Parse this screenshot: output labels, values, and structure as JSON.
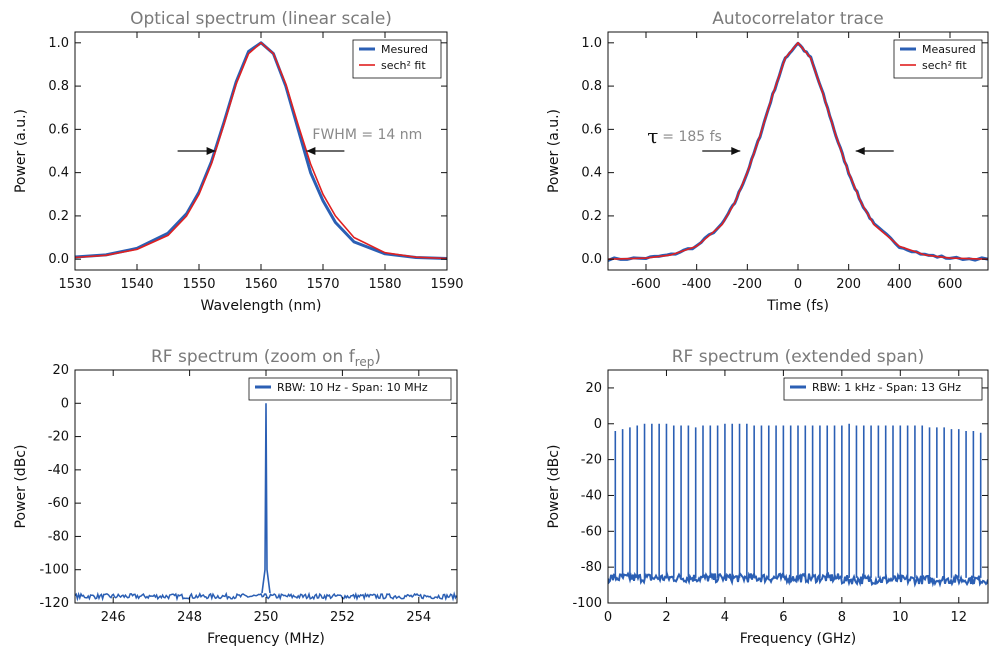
{
  "chart_data": [
    {
      "type": "line",
      "title": "Optical spectrum (linear scale)",
      "xlabel": "Wavelength (nm)",
      "ylabel": "Power (a.u.)",
      "xlim": [
        1530,
        1590
      ],
      "ylim": [
        -0.05,
        1.05
      ],
      "xticks": [
        1530,
        1540,
        1550,
        1560,
        1570,
        1580,
        1590
      ],
      "yticks": [
        0.0,
        0.2,
        0.4,
        0.6,
        0.8,
        1.0
      ],
      "ytick_labels": [
        "0.0",
        "0.2",
        "0.4",
        "0.6",
        "0.8",
        "1.0"
      ],
      "legend_position": "top-right",
      "series": [
        {
          "name": "Mesured",
          "color": "#2b5fb4",
          "x": [
            1530,
            1535,
            1540,
            1545,
            1548,
            1550,
            1552,
            1554,
            1556,
            1558,
            1560,
            1562,
            1564,
            1566,
            1568,
            1570,
            1572,
            1575,
            1580,
            1585,
            1590
          ],
          "y": [
            0.01,
            0.02,
            0.05,
            0.12,
            0.21,
            0.31,
            0.45,
            0.63,
            0.82,
            0.96,
            1.0,
            0.95,
            0.8,
            0.6,
            0.4,
            0.27,
            0.17,
            0.08,
            0.025,
            0.008,
            0.003
          ]
        },
        {
          "name": "sech² fit",
          "color": "#e02020",
          "x": [
            1530,
            1535,
            1540,
            1545,
            1548,
            1550,
            1552,
            1554,
            1556,
            1558,
            1560,
            1562,
            1564,
            1566,
            1568,
            1570,
            1572,
            1575,
            1580,
            1585,
            1590
          ],
          "y": [
            0.008,
            0.018,
            0.045,
            0.11,
            0.2,
            0.3,
            0.44,
            0.62,
            0.81,
            0.95,
            1.0,
            0.95,
            0.81,
            0.62,
            0.44,
            0.3,
            0.2,
            0.1,
            0.03,
            0.009,
            0.003
          ]
        }
      ],
      "annotation": {
        "text": "FWHM = 14 nm",
        "arrow_left_x": 1553,
        "arrow_right_x": 1567,
        "level": 0.5
      }
    },
    {
      "type": "line",
      "title": "Autocorrelator trace",
      "xlabel": "Time (fs)",
      "ylabel": "Power (a.u.)",
      "xlim": [
        -750,
        750
      ],
      "ylim": [
        -0.05,
        1.05
      ],
      "xticks": [
        -600,
        -400,
        -200,
        0,
        200,
        400,
        600
      ],
      "yticks": [
        0.0,
        0.2,
        0.4,
        0.6,
        0.8,
        1.0
      ],
      "ytick_labels": [
        "0.0",
        "0.2",
        "0.4",
        "0.6",
        "0.8",
        "1.0"
      ],
      "legend_position": "top-right",
      "series": [
        {
          "name": "Measured",
          "color": "#2b5fb4",
          "x": [
            -750,
            -600,
            -500,
            -400,
            -300,
            -250,
            -200,
            -150,
            -100,
            -50,
            0,
            50,
            100,
            150,
            200,
            250,
            300,
            400,
            500,
            600,
            750
          ],
          "y": [
            0.0,
            0.005,
            0.02,
            0.06,
            0.16,
            0.26,
            0.4,
            0.57,
            0.76,
            0.93,
            1.0,
            0.93,
            0.76,
            0.57,
            0.4,
            0.26,
            0.16,
            0.06,
            0.02,
            0.005,
            0.0
          ]
        },
        {
          "name": "sech² fit",
          "color": "#e02020",
          "x": [
            -750,
            -600,
            -500,
            -400,
            -300,
            -250,
            -200,
            -150,
            -100,
            -50,
            0,
            50,
            100,
            150,
            200,
            250,
            300,
            400,
            500,
            600,
            750
          ],
          "y": [
            0.0,
            0.005,
            0.02,
            0.06,
            0.16,
            0.26,
            0.4,
            0.57,
            0.76,
            0.93,
            1.0,
            0.93,
            0.76,
            0.57,
            0.4,
            0.26,
            0.16,
            0.06,
            0.02,
            0.005,
            0.0
          ]
        }
      ],
      "annotation": {
        "symbol": "τ",
        "text": "= 185 fs",
        "arrow_left_x": -220,
        "arrow_right_x": 220,
        "level": 0.5
      }
    },
    {
      "type": "line",
      "title": "RF spectrum (zoom on f",
      "title_subscript": "rep",
      "title_suffix": ")",
      "xlabel": "Frequency (MHz)",
      "ylabel": "Power (dBc)",
      "xlim": [
        245,
        255
      ],
      "ylim": [
        -120,
        20
      ],
      "xticks": [
        246,
        248,
        250,
        252,
        254
      ],
      "yticks": [
        20,
        0,
        -20,
        -40,
        -60,
        -80,
        -100,
        -120
      ],
      "legend_position": "top-right",
      "series": [
        {
          "name": "RBW: 10 Hz - Span: 10 MHz",
          "color": "#2b5fb4",
          "noise_floor": -116,
          "peaks": [
            {
              "x": 250.0,
              "y": 0
            }
          ]
        }
      ]
    },
    {
      "type": "line",
      "title": "RF spectrum (extended span)",
      "xlabel": "Frequency (GHz)",
      "ylabel": "Power (dBc)",
      "xlim": [
        0,
        13
      ],
      "ylim": [
        -100,
        30
      ],
      "xticks": [
        0,
        2,
        4,
        6,
        8,
        10,
        12
      ],
      "yticks": [
        20,
        0,
        -20,
        -40,
        -60,
        -80,
        -100
      ],
      "legend_position": "top-right",
      "series": [
        {
          "name": "RBW: 1 kHz - Span: 13 GHz",
          "color": "#2b5fb4",
          "noise_floor": -86,
          "harmonic_spacing_ghz": 0.25,
          "first_harmonic_ghz": 0.25,
          "peak_levels": [
            -4,
            -3,
            -2,
            -1,
            0,
            0,
            0,
            0,
            -1,
            -1,
            -1,
            -2,
            -1,
            -1,
            -1,
            0,
            0,
            0,
            0,
            -1,
            -1,
            -1,
            -1,
            -1,
            -1,
            -1,
            -1,
            -1,
            -1,
            -1,
            -1,
            -1,
            0,
            -1,
            -1,
            -1,
            -1,
            -1,
            -1,
            -1,
            -1,
            -1,
            -1,
            -2,
            -2,
            -2,
            -3,
            -3,
            -4,
            -4,
            -5,
            -4
          ]
        }
      ]
    }
  ]
}
